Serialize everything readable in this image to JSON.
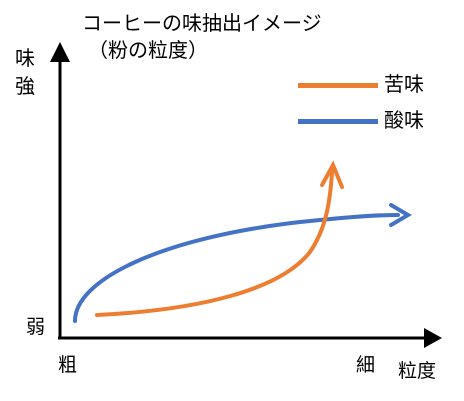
{
  "title": "コーヒーの味抽出イメージ",
  "subtitle": "（粉の粒度）",
  "y_axis": {
    "label": "味強",
    "low_label": "弱"
  },
  "x_axis": {
    "label": "粒度",
    "start_label": "粗",
    "end_label": "細"
  },
  "legend": [
    {
      "name": "苦味",
      "color": "#ED7D31"
    },
    {
      "name": "酸味",
      "color": "#4472C4"
    }
  ],
  "colors": {
    "axis": "#000000",
    "bitter": "#ED7D31",
    "acidity": "#4472C4"
  }
}
